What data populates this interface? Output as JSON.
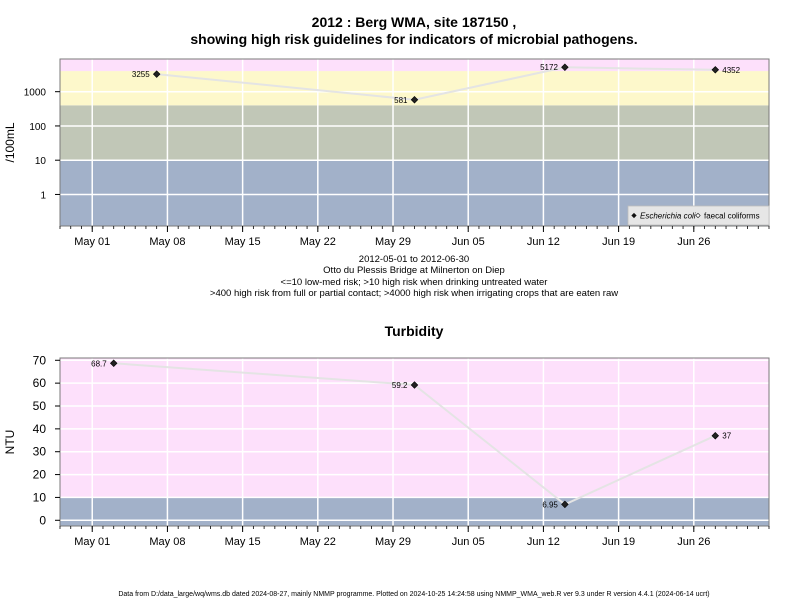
{
  "header": {
    "title_line1": "2012 : Berg WMA, site 187150 ,",
    "title_line2": "showing high risk guidelines for indicators of microbial pathogens."
  },
  "colors": {
    "band_low": "#a2b1c9",
    "band_mid": "#c1c7b7",
    "band_high": "#fdf8cb",
    "band_top": "#fde0fb",
    "turbidity_high": "#fde0fb",
    "line": "#e4e4e4",
    "point": "#000000"
  },
  "chart_data": [
    {
      "type": "scatter",
      "panel": "microbial",
      "ylabel": "/100mL",
      "y_scale": "log",
      "ylim": [
        0.12,
        9000
      ],
      "y_ticks": [
        1,
        10,
        100,
        1000
      ],
      "y_tick_labels": [
        "1",
        "10",
        "100",
        "1000"
      ],
      "xlim": [
        "2012-04-28",
        "2012-07-03"
      ],
      "x_ticks": [
        "2012-05-01",
        "2012-05-08",
        "2012-05-15",
        "2012-05-22",
        "2012-05-29",
        "2012-06-05",
        "2012-06-12",
        "2012-06-19",
        "2012-06-26"
      ],
      "x_tick_labels": [
        "May 01",
        "May 08",
        "May 15",
        "May 22",
        "May 29",
        "Jun 05",
        "Jun 12",
        "Jun 19",
        "Jun 26"
      ],
      "bands": [
        {
          "from": 0.12,
          "to": 10,
          "color": "#a2b1c9"
        },
        {
          "from": 10,
          "to": 400,
          "color": "#c1c7b7"
        },
        {
          "from": 400,
          "to": 4000,
          "color": "#fdf8cb"
        },
        {
          "from": 4000,
          "to": 9000,
          "color": "#fde0fb"
        }
      ],
      "series": [
        {
          "name": "Escherichia coli",
          "marker": "filled-diamond",
          "x": [
            "2012-05-07",
            "2012-05-31",
            "2012-06-14",
            "2012-06-28"
          ],
          "y": [
            3255,
            581,
            5172,
            4352
          ],
          "labels": [
            "3255",
            "581",
            "5172",
            "4352"
          ],
          "label_side": [
            "left",
            "left",
            "left",
            "right"
          ]
        }
      ],
      "legend": {
        "position": "bottom-right",
        "entries": [
          {
            "label": "Escherichia coli",
            "marker": "filled-diamond",
            "italic": true
          },
          {
            "label": "faecal coliforms",
            "marker": "open-diamond",
            "italic": false
          }
        ]
      },
      "notes": [
        "2012-05-01 to 2012-06-30",
        "Otto du Plessis Bridge at Milnerton on Diep",
        "<=10 low-med risk; >10 high risk when drinking untreated water",
        ">400 high risk from full or partial contact; >4000 high risk when irrigating crops that are eaten raw"
      ]
    },
    {
      "type": "scatter",
      "panel": "turbidity",
      "title": "Turbidity",
      "ylabel": "NTU",
      "ylim": [
        -2.5,
        71
      ],
      "y_ticks": [
        0,
        10,
        20,
        30,
        40,
        50,
        60,
        70
      ],
      "xlim": [
        "2012-04-28",
        "2012-07-03"
      ],
      "x_ticks": [
        "2012-05-01",
        "2012-05-08",
        "2012-05-15",
        "2012-05-22",
        "2012-05-29",
        "2012-06-05",
        "2012-06-12",
        "2012-06-19",
        "2012-06-26"
      ],
      "x_tick_labels": [
        "May 01",
        "May 08",
        "May 15",
        "May 22",
        "May 29",
        "Jun 05",
        "Jun 12",
        "Jun 19",
        "Jun 26"
      ],
      "bands": [
        {
          "from": -2.5,
          "to": 10,
          "color": "#a2b1c9"
        },
        {
          "from": 10,
          "to": 71,
          "color": "#fde0fb"
        }
      ],
      "series": [
        {
          "name": "Turbidity",
          "marker": "filled-diamond",
          "x": [
            "2012-05-03",
            "2012-05-31",
            "2012-06-14",
            "2012-06-28"
          ],
          "y": [
            68.7,
            59.2,
            6.95,
            37
          ],
          "labels": [
            "68.7",
            "59.2",
            "6.95",
            "37"
          ],
          "label_side": [
            "left",
            "left",
            "left",
            "right"
          ]
        }
      ]
    }
  ],
  "footer": {
    "text": "Data from D:/data_large/wq/wms.db dated 2024-08-27, mainly NMMP programme. Plotted on 2024-10-25 14:24:58 using NMMP_WMA_web.R ver 9.3 under R version 4.4.1 (2024-06-14 ucrt)"
  }
}
